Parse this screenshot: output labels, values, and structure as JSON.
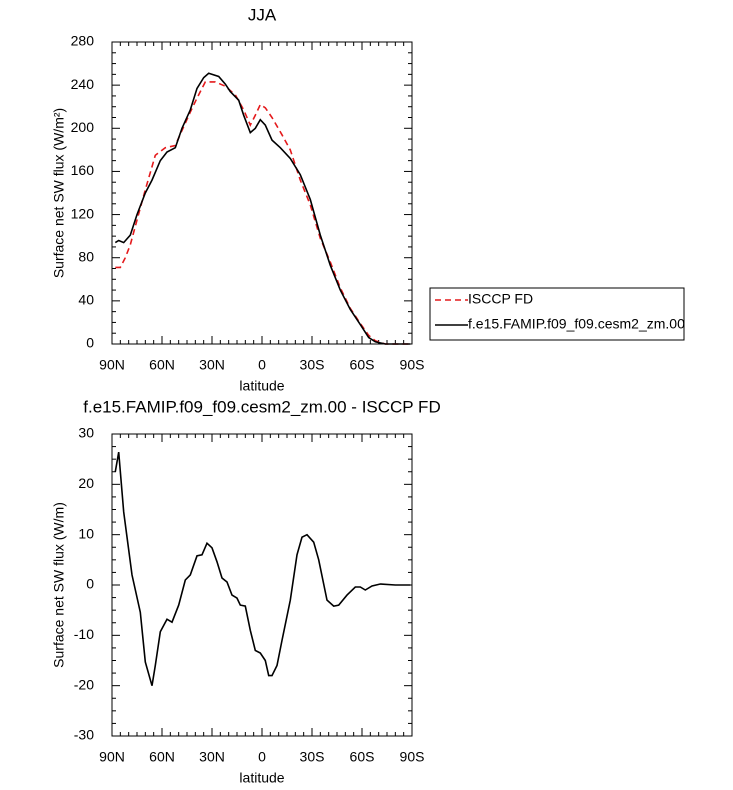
{
  "chart_data": [
    {
      "type": "line",
      "title": "JJA",
      "xlabel": "latitude",
      "ylabel": "Surface net SW flux (W/m²)",
      "xlim": [
        90,
        -90
      ],
      "xticks": [
        {
          "value": 90,
          "label": "90N"
        },
        {
          "value": 60,
          "label": "60N"
        },
        {
          "value": 30,
          "label": "30N"
        },
        0,
        {
          "value": -30,
          "label": "30S"
        },
        {
          "value": -60,
          "label": "60S"
        },
        {
          "value": -90,
          "label": "90S"
        }
      ],
      "ylim": [
        0,
        280
      ],
      "yticks": [
        0,
        40,
        80,
        120,
        160,
        200,
        240,
        280
      ],
      "legend": "right",
      "series": [
        {
          "name": "ISCCP FD",
          "color": "#e41a1c",
          "line_style": "dashed",
          "x": [
            88,
            85,
            82,
            79,
            75,
            70,
            64,
            58,
            52,
            48,
            43,
            39,
            34,
            28,
            22,
            16,
            11,
            7,
            4,
            1,
            -2,
            -6,
            -12,
            -17,
            -23,
            -29,
            -35,
            -41,
            -47,
            -53,
            -59,
            -64,
            -68,
            -74,
            -89
          ],
          "values": [
            71,
            71,
            80,
            92,
            115,
            143,
            175,
            182,
            184,
            198,
            215,
            228,
            243,
            243,
            239,
            231,
            217,
            203,
            212,
            222,
            219,
            210,
            194,
            180,
            152,
            129,
            98,
            76,
            52,
            33,
            19,
            8,
            3,
            0,
            0
          ]
        },
        {
          "name": "f.e15.FAMIP.f09_f09.cesm2_zm.00",
          "color": "#000000",
          "line_style": "solid",
          "x": [
            88,
            86,
            83,
            79,
            75,
            70,
            66,
            61,
            57,
            52,
            48,
            43,
            39,
            35,
            32,
            26,
            22,
            19,
            14,
            11,
            7,
            4,
            1,
            -2,
            -6,
            -11,
            -17,
            -23,
            -29,
            -35,
            -41,
            -47,
            -53,
            -59,
            -64,
            -68,
            -74,
            -83,
            -89
          ],
          "values": [
            94,
            96,
            94,
            101,
            120,
            140,
            152,
            170,
            178,
            182,
            200,
            217,
            237,
            247,
            251,
            248,
            241,
            234,
            226,
            212,
            196,
            200,
            208,
            203,
            189,
            182,
            172,
            157,
            134,
            101,
            73,
            50,
            32,
            18,
            6,
            2,
            0,
            0,
            0
          ]
        }
      ]
    },
    {
      "type": "line",
      "title": "f.e15.FAMIP.f09_f09.cesm2_zm.00 - ISCCP FD",
      "xlabel": "latitude",
      "ylabel": "Surface net SW flux (W/m)",
      "xlim": [
        90,
        -90
      ],
      "xticks": [
        {
          "value": 90,
          "label": "90N"
        },
        {
          "value": 60,
          "label": "60N"
        },
        {
          "value": 30,
          "label": "30N"
        },
        0,
        {
          "value": -30,
          "label": "30S"
        },
        {
          "value": -60,
          "label": "60S"
        },
        {
          "value": -90,
          "label": "90S"
        }
      ],
      "ylim": [
        -30,
        30
      ],
      "yticks": [
        -30,
        -20,
        -10,
        0,
        10,
        20,
        30
      ],
      "series": [
        {
          "color": "#000000",
          "line_style": "solid",
          "x": [
            88,
            86,
            83,
            78,
            73,
            70,
            66,
            64,
            61,
            57,
            54,
            50,
            46,
            43,
            39,
            36,
            33,
            30,
            27,
            24,
            21,
            18,
            15,
            13,
            10,
            7,
            4,
            1,
            -2,
            -4,
            -6,
            -9,
            -12,
            -17,
            -21,
            -24,
            -27,
            -31,
            -34,
            -39,
            -43,
            -46,
            -51,
            -56,
            -59,
            -62,
            -66,
            -71,
            -80,
            -89
          ],
          "values": [
            22.5,
            26.4,
            14.5,
            2,
            -5.4,
            -15.3,
            -20,
            -16,
            -9.3,
            -6.8,
            -7.4,
            -4,
            1,
            2,
            5.8,
            6,
            8.3,
            7.4,
            4.6,
            1.4,
            0.6,
            -2,
            -2.6,
            -4,
            -4.2,
            -9,
            -13,
            -13.5,
            -15,
            -18,
            -18,
            -16,
            -11,
            -3,
            6,
            9.5,
            10,
            8.5,
            5,
            -3,
            -4.2,
            -4,
            -2,
            -0.4,
            -0.4,
            -1,
            -0.2,
            0.2,
            0,
            0
          ]
        }
      ]
    }
  ]
}
